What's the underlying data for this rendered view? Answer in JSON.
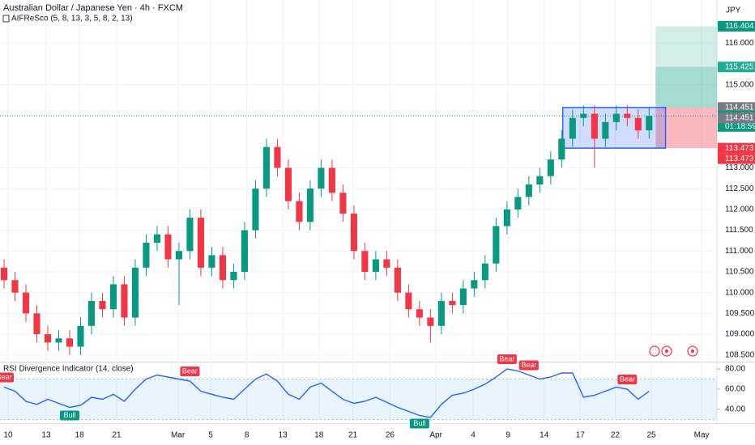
{
  "header": {
    "title": "Australian Dollar / Japanese Yen · 4h · FXCM",
    "indicator": "AIFReSco (5, 8, 13, 3, 5, 8, 2, 13)",
    "currency": "JPY"
  },
  "chart_data": [
    {
      "type": "candlestick",
      "xlim": [
        -0.37,
        65.2
      ],
      "ylim": [
        108.34,
        117.035
      ],
      "yticks": [
        {
          "value": 116,
          "label": "116.000"
        },
        {
          "value": 115,
          "label": "115.000"
        },
        {
          "value": 113,
          "label": "113.000"
        },
        {
          "value": 112.5,
          "label": "112.500"
        },
        {
          "value": 112,
          "label": "112.000"
        },
        {
          "value": 111.5,
          "label": "111.500"
        },
        {
          "value": 111,
          "label": "111.000"
        },
        {
          "value": 110.5,
          "label": "110.500"
        },
        {
          "value": 110,
          "label": "110.000"
        },
        {
          "value": 109.5,
          "label": "109.500"
        },
        {
          "value": 109,
          "label": "109.000"
        },
        {
          "value": 108.5,
          "label": "108.500"
        }
      ],
      "xticks": [
        {
          "value": 0.37,
          "label": "10"
        },
        {
          "value": 3.85,
          "label": "13"
        },
        {
          "value": 6.9,
          "label": "18"
        },
        {
          "value": 10.3,
          "label": "21"
        },
        {
          "value": 15.9,
          "label": "Mar"
        },
        {
          "value": 18.9,
          "label": "5"
        },
        {
          "value": 22.2,
          "label": "8"
        },
        {
          "value": 25.5,
          "label": "13"
        },
        {
          "value": 28.8,
          "label": "18"
        },
        {
          "value": 31.9,
          "label": "21"
        },
        {
          "value": 35.3,
          "label": "26"
        },
        {
          "value": 39.5,
          "label": "Apr"
        },
        {
          "value": 42.9,
          "label": "4"
        },
        {
          "value": 46.1,
          "label": "9"
        },
        {
          "value": 49.4,
          "label": "14"
        },
        {
          "value": 52.7,
          "label": "17"
        },
        {
          "value": 55.9,
          "label": "22"
        },
        {
          "value": 59.2,
          "label": "25"
        },
        {
          "value": 63.8,
          "label": "May"
        }
      ],
      "open": [
        110.6,
        110.3,
        110.0,
        109.5,
        109.0,
        108.8,
        108.9,
        108.7,
        109.2,
        109.8,
        109.6,
        110.2,
        109.4,
        110.6,
        111.2,
        111.4,
        110.8,
        111.0,
        111.8,
        110.6,
        110.9,
        110.3,
        110.5,
        111.5,
        112.5,
        113.5,
        113.0,
        112.2,
        111.7,
        112.5,
        113.0,
        112.4,
        111.9,
        111.0,
        110.5,
        110.8,
        110.6,
        110.0,
        109.6,
        109.4,
        109.2,
        109.8,
        109.7,
        110.1,
        110.3,
        110.7,
        111.6,
        112.0,
        112.3,
        112.6,
        112.8,
        113.2,
        113.7,
        114.2,
        114.3,
        113.7,
        114.1,
        114.3,
        114.2,
        113.9
      ],
      "high": [
        110.8,
        110.5,
        110.2,
        109.7,
        109.2,
        109.1,
        109.1,
        109.4,
        110.0,
        110.0,
        110.4,
        110.4,
        110.8,
        111.4,
        111.6,
        111.6,
        111.2,
        112.0,
        112.0,
        111.1,
        111.1,
        110.7,
        111.7,
        112.7,
        113.7,
        113.7,
        113.2,
        112.4,
        112.7,
        113.2,
        113.2,
        112.6,
        112.1,
        111.2,
        111.0,
        111.0,
        110.8,
        110.2,
        109.8,
        109.6,
        110.0,
        110.0,
        110.3,
        110.5,
        110.9,
        111.8,
        112.2,
        112.5,
        112.8,
        113.0,
        113.4,
        113.9,
        114.4,
        114.5,
        114.5,
        114.3,
        114.5,
        114.5,
        114.4,
        114.45
      ],
      "low": [
        110.1,
        109.8,
        109.3,
        108.8,
        108.6,
        108.6,
        108.5,
        108.5,
        109.0,
        109.4,
        109.4,
        109.2,
        109.2,
        110.4,
        111.0,
        110.6,
        109.7,
        110.8,
        110.4,
        110.4,
        110.1,
        110.1,
        110.3,
        111.3,
        112.3,
        112.8,
        112.0,
        111.5,
        111.5,
        112.3,
        112.2,
        111.7,
        110.8,
        110.3,
        110.3,
        110.4,
        109.8,
        109.4,
        109.2,
        108.8,
        109.0,
        109.5,
        109.5,
        109.9,
        110.1,
        110.5,
        111.4,
        111.8,
        112.1,
        112.4,
        112.6,
        113.0,
        113.5,
        114.0,
        113.0,
        113.5,
        113.9,
        114.0,
        113.7,
        113.7
      ],
      "close": [
        110.3,
        110.0,
        109.5,
        109.0,
        108.8,
        108.9,
        108.7,
        109.2,
        109.8,
        109.6,
        110.2,
        109.4,
        110.6,
        111.2,
        111.4,
        110.8,
        111.0,
        111.8,
        110.6,
        110.9,
        110.3,
        110.5,
        111.5,
        112.5,
        113.5,
        113.0,
        112.2,
        111.7,
        112.5,
        113.0,
        112.4,
        111.9,
        111.0,
        110.5,
        110.8,
        110.6,
        110.0,
        109.6,
        109.4,
        109.2,
        109.8,
        109.7,
        110.1,
        110.3,
        110.7,
        111.6,
        112.0,
        112.3,
        112.6,
        112.8,
        113.2,
        113.7,
        114.2,
        114.3,
        113.7,
        114.1,
        114.3,
        114.2,
        113.9,
        114.25
      ],
      "up_color": "#089981",
      "down_color": "#f23645",
      "price_labels": [
        {
          "value": 116.404,
          "color": "#089981"
        },
        {
          "value": 115.425,
          "color": "#22ab94"
        },
        {
          "value": 114.451,
          "color": "#787b86"
        },
        {
          "value": 114.248,
          "color": "#089981",
          "countdown": "01:18:59"
        },
        {
          "value": 114.451,
          "color": "#787b86"
        },
        {
          "value": 113.473,
          "color": "#f23645"
        },
        {
          "value": 113.473,
          "color": "#f23645"
        }
      ]
    },
    {
      "type": "line",
      "title": "RSI Divergence Indicator (14, close)",
      "color": "#2962ff",
      "ylim": [
        26.4,
        86.4
      ],
      "yticks": [
        {
          "value": 80,
          "label": "80.00"
        },
        {
          "value": 60,
          "label": "60.00"
        },
        {
          "value": 40,
          "label": "40.00"
        }
      ],
      "band": [
        30,
        70
      ],
      "values": [
        62,
        58,
        48,
        45,
        50,
        46,
        42,
        44,
        52,
        50,
        55,
        48,
        60,
        70,
        74,
        72,
        70,
        68,
        58,
        55,
        52,
        50,
        60,
        70,
        75,
        68,
        55,
        50,
        62,
        66,
        58,
        50,
        46,
        48,
        52,
        47,
        42,
        38,
        34,
        32,
        45,
        54,
        56,
        60,
        65,
        72,
        80,
        78,
        74,
        70,
        72,
        76,
        76,
        52,
        54,
        58,
        62,
        60,
        50,
        58
      ],
      "annotations": [
        {
          "label": "Bear",
          "x": 0
        },
        {
          "label": "Bull",
          "x": 6
        },
        {
          "label": "Bear",
          "x": 17
        },
        {
          "label": "Bull",
          "x": 38
        },
        {
          "label": "Bear",
          "x": 46
        },
        {
          "label": "Bear",
          "x": 48
        },
        {
          "label": "Bear",
          "x": 57
        }
      ]
    }
  ]
}
